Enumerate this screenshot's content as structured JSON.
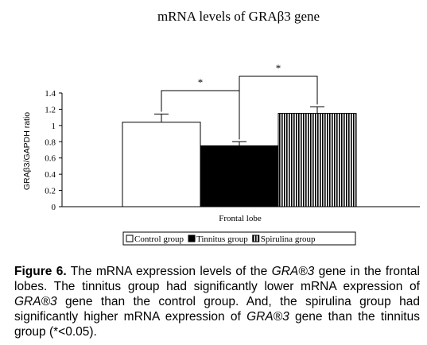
{
  "chart_data": {
    "type": "bar",
    "title": "mRNA levels of GRAβ3 gene",
    "xlabel": "Frontal lobe",
    "ylabel": "GRAβ3/GAPDH ratio",
    "ylim": [
      0,
      1.4
    ],
    "yticks": [
      "0",
      "0.2",
      "0.4",
      "0.6",
      "0.8",
      "1",
      "1.2",
      "1.4"
    ],
    "grid": false,
    "legend_position": "bottom",
    "series": [
      {
        "name": "Control group",
        "value": 1.04,
        "error": 0.1,
        "fill": "white"
      },
      {
        "name": "Tinnitus group",
        "value": 0.75,
        "error": 0.05,
        "fill": "black"
      },
      {
        "name": "Spirulina group",
        "value": 1.15,
        "error": 0.08,
        "fill": "vertical-stripes"
      }
    ],
    "significance": [
      {
        "between": [
          "Control group",
          "Tinnitus group"
        ],
        "label": "*"
      },
      {
        "between": [
          "Tinnitus group",
          "Spirulina group"
        ],
        "label": "*"
      }
    ]
  },
  "caption": {
    "label": "Figure 6.",
    "part1": " The mRNA expression levels of the ",
    "gene": "GRA®3",
    "part2": " gene in the frontal lobes. The tinnitus group had significantly lower mRNA expression of ",
    "part3": " gene than the control group. And, the spirulina group had significantly higher mRNA expression of ",
    "part4": " gene than the tinnitus group (*<0.05)."
  }
}
